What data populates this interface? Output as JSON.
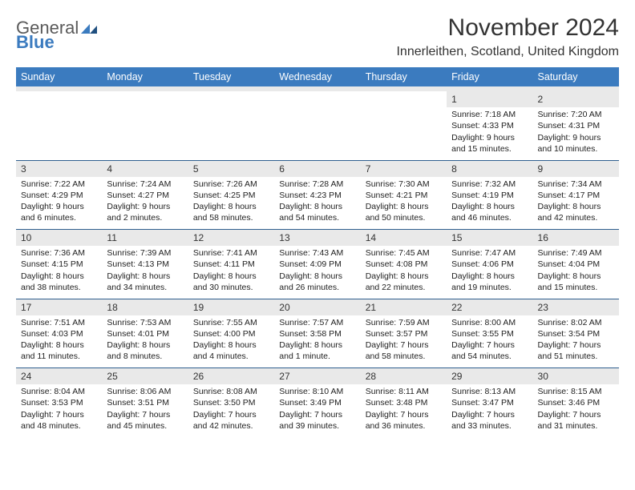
{
  "brand": {
    "line1": "General",
    "line2": "Blue"
  },
  "title": "November 2024",
  "location": "Innerleithen, Scotland, United Kingdom",
  "colors": {
    "header_bg": "#3b7bbf",
    "header_text": "#ffffff",
    "daynum_bg": "#e9e9e9",
    "week_divider": "#2f5f8f",
    "text": "#222222"
  },
  "day_headers": [
    "Sunday",
    "Monday",
    "Tuesday",
    "Wednesday",
    "Thursday",
    "Friday",
    "Saturday"
  ],
  "weeks": [
    [
      null,
      null,
      null,
      null,
      null,
      {
        "n": "1",
        "sunrise": "Sunrise: 7:18 AM",
        "sunset": "Sunset: 4:33 PM",
        "daylight": "Daylight: 9 hours and 15 minutes."
      },
      {
        "n": "2",
        "sunrise": "Sunrise: 7:20 AM",
        "sunset": "Sunset: 4:31 PM",
        "daylight": "Daylight: 9 hours and 10 minutes."
      }
    ],
    [
      {
        "n": "3",
        "sunrise": "Sunrise: 7:22 AM",
        "sunset": "Sunset: 4:29 PM",
        "daylight": "Daylight: 9 hours and 6 minutes."
      },
      {
        "n": "4",
        "sunrise": "Sunrise: 7:24 AM",
        "sunset": "Sunset: 4:27 PM",
        "daylight": "Daylight: 9 hours and 2 minutes."
      },
      {
        "n": "5",
        "sunrise": "Sunrise: 7:26 AM",
        "sunset": "Sunset: 4:25 PM",
        "daylight": "Daylight: 8 hours and 58 minutes."
      },
      {
        "n": "6",
        "sunrise": "Sunrise: 7:28 AM",
        "sunset": "Sunset: 4:23 PM",
        "daylight": "Daylight: 8 hours and 54 minutes."
      },
      {
        "n": "7",
        "sunrise": "Sunrise: 7:30 AM",
        "sunset": "Sunset: 4:21 PM",
        "daylight": "Daylight: 8 hours and 50 minutes."
      },
      {
        "n": "8",
        "sunrise": "Sunrise: 7:32 AM",
        "sunset": "Sunset: 4:19 PM",
        "daylight": "Daylight: 8 hours and 46 minutes."
      },
      {
        "n": "9",
        "sunrise": "Sunrise: 7:34 AM",
        "sunset": "Sunset: 4:17 PM",
        "daylight": "Daylight: 8 hours and 42 minutes."
      }
    ],
    [
      {
        "n": "10",
        "sunrise": "Sunrise: 7:36 AM",
        "sunset": "Sunset: 4:15 PM",
        "daylight": "Daylight: 8 hours and 38 minutes."
      },
      {
        "n": "11",
        "sunrise": "Sunrise: 7:39 AM",
        "sunset": "Sunset: 4:13 PM",
        "daylight": "Daylight: 8 hours and 34 minutes."
      },
      {
        "n": "12",
        "sunrise": "Sunrise: 7:41 AM",
        "sunset": "Sunset: 4:11 PM",
        "daylight": "Daylight: 8 hours and 30 minutes."
      },
      {
        "n": "13",
        "sunrise": "Sunrise: 7:43 AM",
        "sunset": "Sunset: 4:09 PM",
        "daylight": "Daylight: 8 hours and 26 minutes."
      },
      {
        "n": "14",
        "sunrise": "Sunrise: 7:45 AM",
        "sunset": "Sunset: 4:08 PM",
        "daylight": "Daylight: 8 hours and 22 minutes."
      },
      {
        "n": "15",
        "sunrise": "Sunrise: 7:47 AM",
        "sunset": "Sunset: 4:06 PM",
        "daylight": "Daylight: 8 hours and 19 minutes."
      },
      {
        "n": "16",
        "sunrise": "Sunrise: 7:49 AM",
        "sunset": "Sunset: 4:04 PM",
        "daylight": "Daylight: 8 hours and 15 minutes."
      }
    ],
    [
      {
        "n": "17",
        "sunrise": "Sunrise: 7:51 AM",
        "sunset": "Sunset: 4:03 PM",
        "daylight": "Daylight: 8 hours and 11 minutes."
      },
      {
        "n": "18",
        "sunrise": "Sunrise: 7:53 AM",
        "sunset": "Sunset: 4:01 PM",
        "daylight": "Daylight: 8 hours and 8 minutes."
      },
      {
        "n": "19",
        "sunrise": "Sunrise: 7:55 AM",
        "sunset": "Sunset: 4:00 PM",
        "daylight": "Daylight: 8 hours and 4 minutes."
      },
      {
        "n": "20",
        "sunrise": "Sunrise: 7:57 AM",
        "sunset": "Sunset: 3:58 PM",
        "daylight": "Daylight: 8 hours and 1 minute."
      },
      {
        "n": "21",
        "sunrise": "Sunrise: 7:59 AM",
        "sunset": "Sunset: 3:57 PM",
        "daylight": "Daylight: 7 hours and 58 minutes."
      },
      {
        "n": "22",
        "sunrise": "Sunrise: 8:00 AM",
        "sunset": "Sunset: 3:55 PM",
        "daylight": "Daylight: 7 hours and 54 minutes."
      },
      {
        "n": "23",
        "sunrise": "Sunrise: 8:02 AM",
        "sunset": "Sunset: 3:54 PM",
        "daylight": "Daylight: 7 hours and 51 minutes."
      }
    ],
    [
      {
        "n": "24",
        "sunrise": "Sunrise: 8:04 AM",
        "sunset": "Sunset: 3:53 PM",
        "daylight": "Daylight: 7 hours and 48 minutes."
      },
      {
        "n": "25",
        "sunrise": "Sunrise: 8:06 AM",
        "sunset": "Sunset: 3:51 PM",
        "daylight": "Daylight: 7 hours and 45 minutes."
      },
      {
        "n": "26",
        "sunrise": "Sunrise: 8:08 AM",
        "sunset": "Sunset: 3:50 PM",
        "daylight": "Daylight: 7 hours and 42 minutes."
      },
      {
        "n": "27",
        "sunrise": "Sunrise: 8:10 AM",
        "sunset": "Sunset: 3:49 PM",
        "daylight": "Daylight: 7 hours and 39 minutes."
      },
      {
        "n": "28",
        "sunrise": "Sunrise: 8:11 AM",
        "sunset": "Sunset: 3:48 PM",
        "daylight": "Daylight: 7 hours and 36 minutes."
      },
      {
        "n": "29",
        "sunrise": "Sunrise: 8:13 AM",
        "sunset": "Sunset: 3:47 PM",
        "daylight": "Daylight: 7 hours and 33 minutes."
      },
      {
        "n": "30",
        "sunrise": "Sunrise: 8:15 AM",
        "sunset": "Sunset: 3:46 PM",
        "daylight": "Daylight: 7 hours and 31 minutes."
      }
    ]
  ]
}
